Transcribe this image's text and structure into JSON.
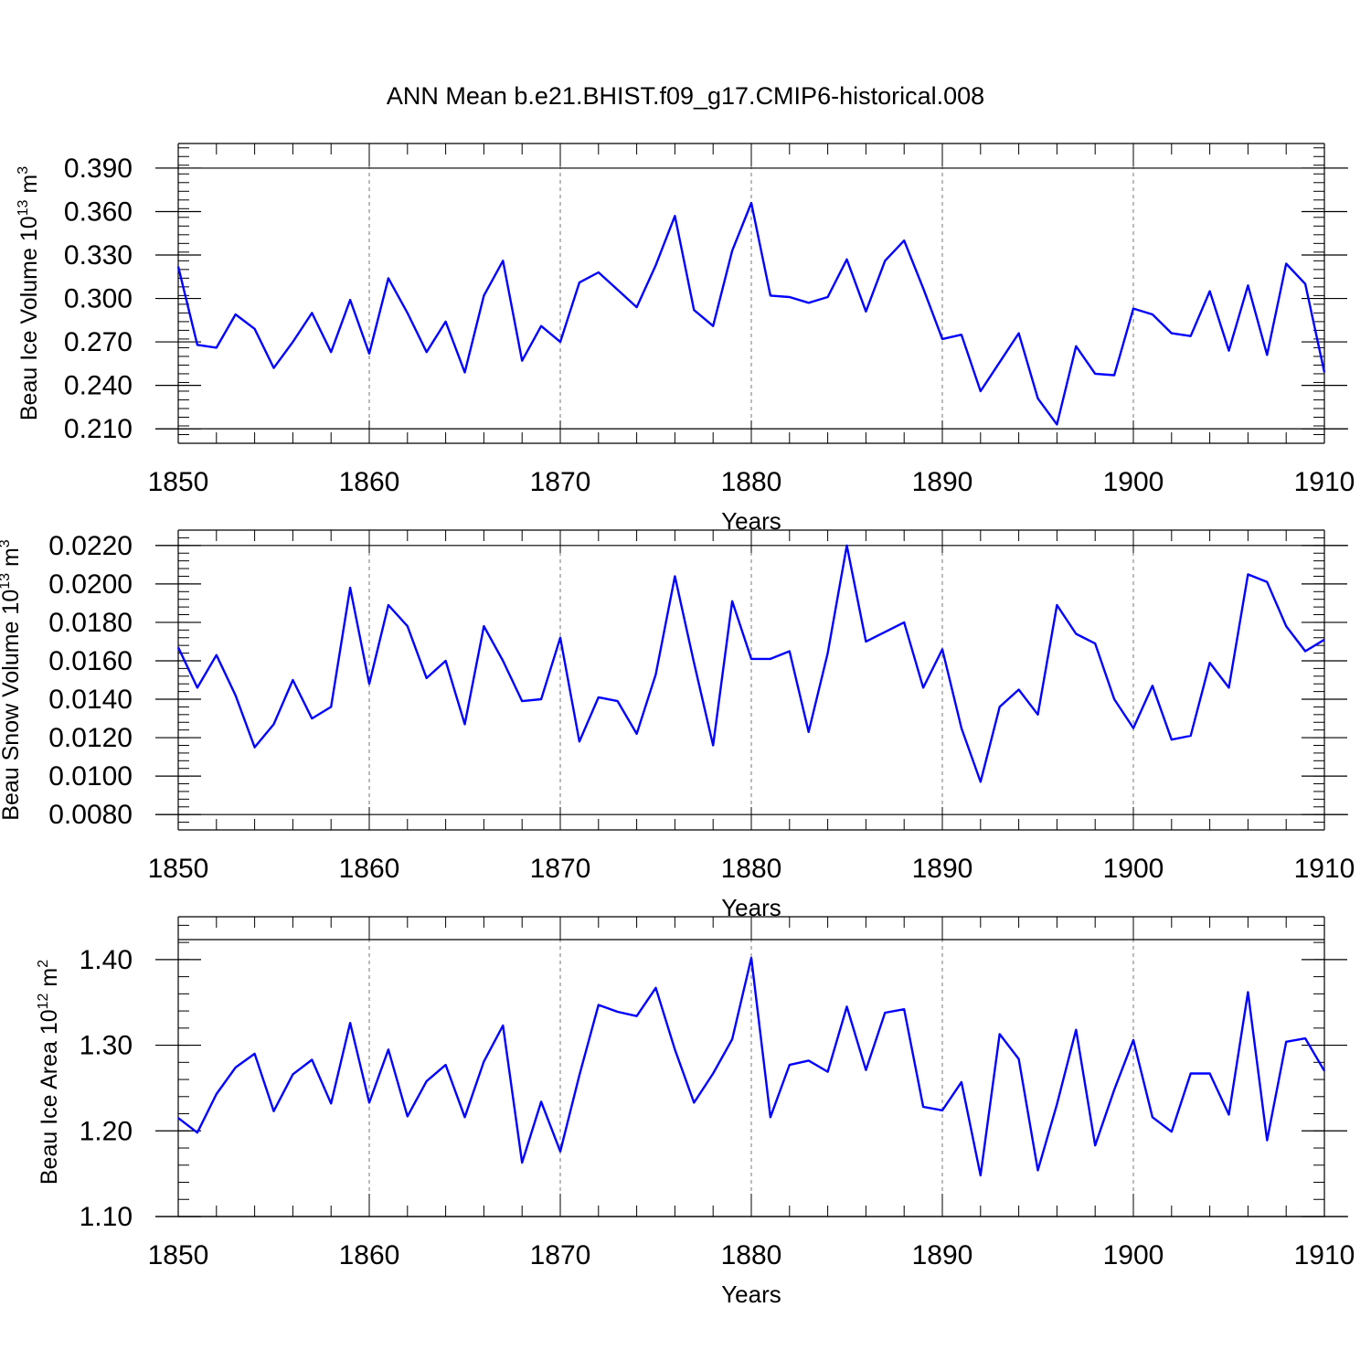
{
  "figure": {
    "title": "ANN Mean b.e21.BHIST.f09_g17.CMIP6-historical.008"
  },
  "chart_data": [
    {
      "type": "line",
      "ylabel": "Beau Ice Volume 10",
      "ylabel_exp": "13",
      "ylabel_unit": " m",
      "ylabel_unit_exp": "3",
      "xlabel": "Years",
      "xlim": [
        1850,
        1910
      ],
      "ylim": [
        0.2,
        0.407
      ],
      "y_ticks": [
        0.21,
        0.24,
        0.27,
        0.3,
        0.33,
        0.36,
        0.39
      ],
      "y_tick_labels": [
        "0.210",
        "0.240",
        "0.270",
        "0.300",
        "0.330",
        "0.360",
        "0.390"
      ],
      "y_minor_step": 0.006,
      "x_ticks": [
        1850,
        1860,
        1870,
        1880,
        1890,
        1900,
        1910
      ],
      "x_tick_labels": [
        "1850",
        "1860",
        "1870",
        "1880",
        "1890",
        "1900",
        "1910"
      ],
      "x_grid": [
        1860,
        1870,
        1880,
        1890,
        1900
      ],
      "line_color": "#0000ff",
      "x_start": 1850,
      "values": [
        0.322,
        0.268,
        0.266,
        0.289,
        0.279,
        0.252,
        0.27,
        0.29,
        0.263,
        0.299,
        0.262,
        0.314,
        0.29,
        0.263,
        0.284,
        0.249,
        0.302,
        0.326,
        0.257,
        0.281,
        0.27,
        0.311,
        0.318,
        0.306,
        0.294,
        0.323,
        0.357,
        0.292,
        0.281,
        0.333,
        0.366,
        0.302,
        0.301,
        0.297,
        0.301,
        0.327,
        0.291,
        0.326,
        0.34,
        0.307,
        0.272,
        0.275,
        0.236,
        0.256,
        0.276,
        0.231,
        0.213,
        0.267,
        0.248,
        0.247,
        0.293,
        0.289,
        0.276,
        0.274,
        0.305,
        0.264,
        0.309,
        0.261,
        0.324,
        0.31,
        0.249
      ]
    },
    {
      "type": "line",
      "ylabel": "Beau Snow Volume 10",
      "ylabel_exp": "13",
      "ylabel_unit": " m",
      "ylabel_unit_exp": "3",
      "xlabel": "Years",
      "xlim": [
        1850,
        1910
      ],
      "ylim": [
        0.0072,
        0.0228
      ],
      "y_ticks": [
        0.008,
        0.01,
        0.012,
        0.014,
        0.016,
        0.018,
        0.02,
        0.022
      ],
      "y_tick_labels": [
        "0.0080",
        "0.0100",
        "0.0120",
        "0.0140",
        "0.0160",
        "0.0180",
        "0.0200",
        "0.0220"
      ],
      "y_minor_step": 0.0004,
      "x_ticks": [
        1850,
        1860,
        1870,
        1880,
        1890,
        1900,
        1910
      ],
      "x_tick_labels": [
        "1850",
        "1860",
        "1870",
        "1880",
        "1890",
        "1900",
        "1910"
      ],
      "x_grid": [
        1860,
        1870,
        1880,
        1890,
        1900
      ],
      "line_color": "#0000ff",
      "x_start": 1850,
      "values": [
        0.0167,
        0.0146,
        0.0163,
        0.0142,
        0.0115,
        0.0127,
        0.015,
        0.013,
        0.0136,
        0.0198,
        0.0148,
        0.0189,
        0.0178,
        0.0151,
        0.016,
        0.0127,
        0.0178,
        0.016,
        0.0139,
        0.014,
        0.0172,
        0.0118,
        0.0141,
        0.0139,
        0.0122,
        0.0153,
        0.0204,
        0.0159,
        0.0116,
        0.0191,
        0.0161,
        0.0161,
        0.0165,
        0.0123,
        0.0164,
        0.022,
        0.017,
        0.0175,
        0.018,
        0.0146,
        0.0166,
        0.0125,
        0.0097,
        0.0136,
        0.0145,
        0.0132,
        0.0189,
        0.0174,
        0.0169,
        0.014,
        0.0125,
        0.0147,
        0.0119,
        0.0121,
        0.0159,
        0.0146,
        0.0205,
        0.0201,
        0.0178,
        0.0165,
        0.0171
      ]
    },
    {
      "type": "line",
      "ylabel": "Beau Ice Area 10",
      "ylabel_exp": "12",
      "ylabel_unit": " m",
      "ylabel_unit_exp": "2",
      "xlabel": "Years",
      "xlim": [
        1850,
        1910
      ],
      "ylim": [
        1.1,
        1.45
      ],
      "y_ticks": [
        1.1,
        1.2,
        1.3,
        1.4
      ],
      "y_tick_labels": [
        "1.10",
        "1.20",
        "1.30",
        "1.40"
      ],
      "y_minor_step": 0.02,
      "x_ticks": [
        1850,
        1860,
        1870,
        1880,
        1890,
        1900,
        1910
      ],
      "x_tick_labels": [
        "1850",
        "1860",
        "1870",
        "1880",
        "1890",
        "1900",
        "1910"
      ],
      "x_grid": [
        1860,
        1870,
        1880,
        1890,
        1900
      ],
      "line_color": "#0000ff",
      "x_start": 1850,
      "values": [
        1.215,
        1.198,
        1.243,
        1.274,
        1.29,
        1.223,
        1.266,
        1.283,
        1.232,
        1.326,
        1.233,
        1.295,
        1.217,
        1.258,
        1.277,
        1.216,
        1.281,
        1.323,
        1.163,
        1.234,
        1.176,
        1.265,
        1.347,
        1.339,
        1.334,
        1.367,
        1.295,
        1.233,
        1.267,
        1.307,
        1.402,
        1.216,
        1.277,
        1.282,
        1.269,
        1.345,
        1.271,
        1.338,
        1.342,
        1.228,
        1.224,
        1.257,
        1.148,
        1.313,
        1.284,
        1.154,
        1.231,
        1.318,
        1.183,
        1.248,
        1.306,
        1.216,
        1.199,
        1.267,
        1.267,
        1.219,
        1.362,
        1.189,
        1.304,
        1.308,
        1.27
      ]
    }
  ]
}
